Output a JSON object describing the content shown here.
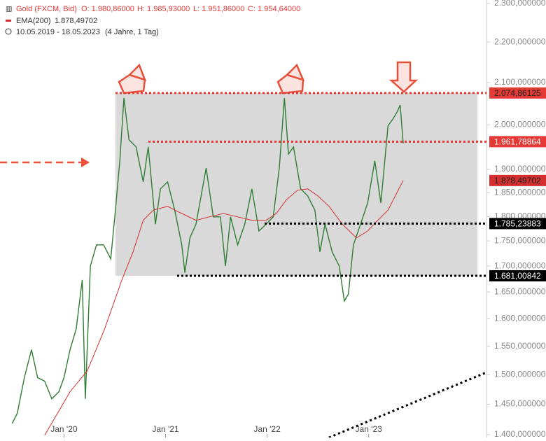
{
  "chart_data": {
    "type": "line",
    "log": true,
    "header": {
      "ohlc": [
        "O: 1.980,86000",
        "H: 1.985,93000",
        "L: 1.951,86000",
        "C: 1.954,64000"
      ],
      "ema_value": "1.878,49702",
      "range": "10.05.2019 - 18.05.2023",
      "period": "(4 Jahre, 1 Tag)"
    },
    "xlim": [
      2019.37,
      2024.16
    ],
    "xticks": [
      {
        "value": 2020,
        "label": "Jan '20"
      },
      {
        "value": 2021,
        "label": "Jan '21"
      },
      {
        "value": 2022,
        "label": "Jan '22"
      },
      {
        "value": 2023,
        "label": "Jan '23"
      }
    ],
    "ylim": [
      1400,
      2300
    ],
    "yticks": [
      {
        "value": 2300,
        "label": "2.300,000000"
      },
      {
        "value": 2200,
        "label": "2.200,000000"
      },
      {
        "value": 2100,
        "label": "2.100,000000"
      },
      {
        "value": 2000,
        "label": "2.000,000000"
      },
      {
        "value": 1900,
        "label": "1.900,000000"
      },
      {
        "value": 1850,
        "label": "1.850,000000"
      },
      {
        "value": 1800,
        "label": "1.800,000000"
      },
      {
        "value": 1750,
        "label": "1.750,000000"
      },
      {
        "value": 1700,
        "label": "1.700,000000"
      },
      {
        "value": 1650,
        "label": "1.650,000000"
      },
      {
        "value": 1600,
        "label": "1.600,000000"
      },
      {
        "value": 1550,
        "label": "1.550,000000"
      },
      {
        "value": 1500,
        "label": "1.500,000000"
      },
      {
        "value": 1450,
        "label": "1.450,000000"
      },
      {
        "value": 1400,
        "label": "1.400,000000"
      }
    ],
    "series": [
      {
        "name": "Gold (FXCM, Bid)",
        "color": "#2e7d32",
        "x": [
          2019.49,
          2019.54,
          2019.61,
          2019.68,
          2019.74,
          2019.81,
          2019.88,
          2019.95,
          2020.0,
          2020.06,
          2020.12,
          2020.18,
          2020.21,
          2020.26,
          2020.32,
          2020.39,
          2020.46,
          2020.5,
          2020.55,
          2020.59,
          2020.64,
          2020.71,
          2020.78,
          2020.83,
          2020.9,
          2020.95,
          2021.02,
          2021.09,
          2021.16,
          2021.19,
          2021.24,
          2021.3,
          2021.4,
          2021.47,
          2021.54,
          2021.59,
          2021.64,
          2021.71,
          2021.78,
          2021.85,
          2021.92,
          2021.99,
          2022.06,
          2022.12,
          2022.17,
          2022.21,
          2022.26,
          2022.33,
          2022.4,
          2022.47,
          2022.52,
          2022.57,
          2022.64,
          2022.71,
          2022.76,
          2022.8,
          2022.85,
          2022.92,
          2022.99,
          2023.06,
          2023.12,
          2023.19,
          2023.24,
          2023.28,
          2023.31,
          2023.34
        ],
        "values": [
          1418,
          1435,
          1495,
          1544,
          1495,
          1489,
          1459,
          1471,
          1495,
          1544,
          1581,
          1673,
          1459,
          1700,
          1742,
          1742,
          1714,
          1799,
          1919,
          2063,
          1966,
          1950,
          1873,
          1950,
          1784,
          1858,
          1873,
          1813,
          1742,
          1687,
          1756,
          1784,
          1903,
          1799,
          1799,
          1700,
          1799,
          1742,
          1784,
          1858,
          1770,
          1784,
          1799,
          1903,
          2063,
          1934,
          1950,
          1858,
          1843,
          1813,
          1728,
          1784,
          1728,
          1700,
          1633,
          1646,
          1742,
          1784,
          1828,
          1919,
          1828,
          1998,
          2014,
          2030,
          2046,
          1958
        ]
      },
      {
        "name": "EMA(200)",
        "color": "#d32f2f",
        "x": [
          2019.81,
          2020.06,
          2020.23,
          2020.4,
          2020.57,
          2020.68,
          2020.78,
          2020.88,
          2021.02,
          2021.16,
          2021.3,
          2021.43,
          2021.57,
          2021.71,
          2021.85,
          2021.99,
          2022.09,
          2022.19,
          2022.3,
          2022.4,
          2022.5,
          2022.61,
          2022.74,
          2022.88,
          2022.99,
          2023.09,
          2023.19,
          2023.34
        ],
        "values": [
          1399,
          1471,
          1507,
          1581,
          1673,
          1728,
          1792,
          1813,
          1821,
          1806,
          1792,
          1799,
          1806,
          1799,
          1792,
          1792,
          1806,
          1835,
          1855,
          1858,
          1843,
          1821,
          1784,
          1756,
          1770,
          1792,
          1813,
          1876
        ]
      }
    ],
    "levels": [
      {
        "value": 2074.86125,
        "label": "2.074,86125",
        "color": "#e53935",
        "text_color": "#222222"
      },
      {
        "value": 1961.78864,
        "label": "1.961,78864",
        "color": "#e53935",
        "text_color": "#ffffff"
      },
      {
        "value": 1785.23883,
        "label": "1.785,23883",
        "color": "#000000",
        "text_color": "#ffffff"
      },
      {
        "value": 1681.00842,
        "label": "1.681,00842",
        "color": "#000000",
        "text_color": "#ffffff"
      }
    ]
  }
}
